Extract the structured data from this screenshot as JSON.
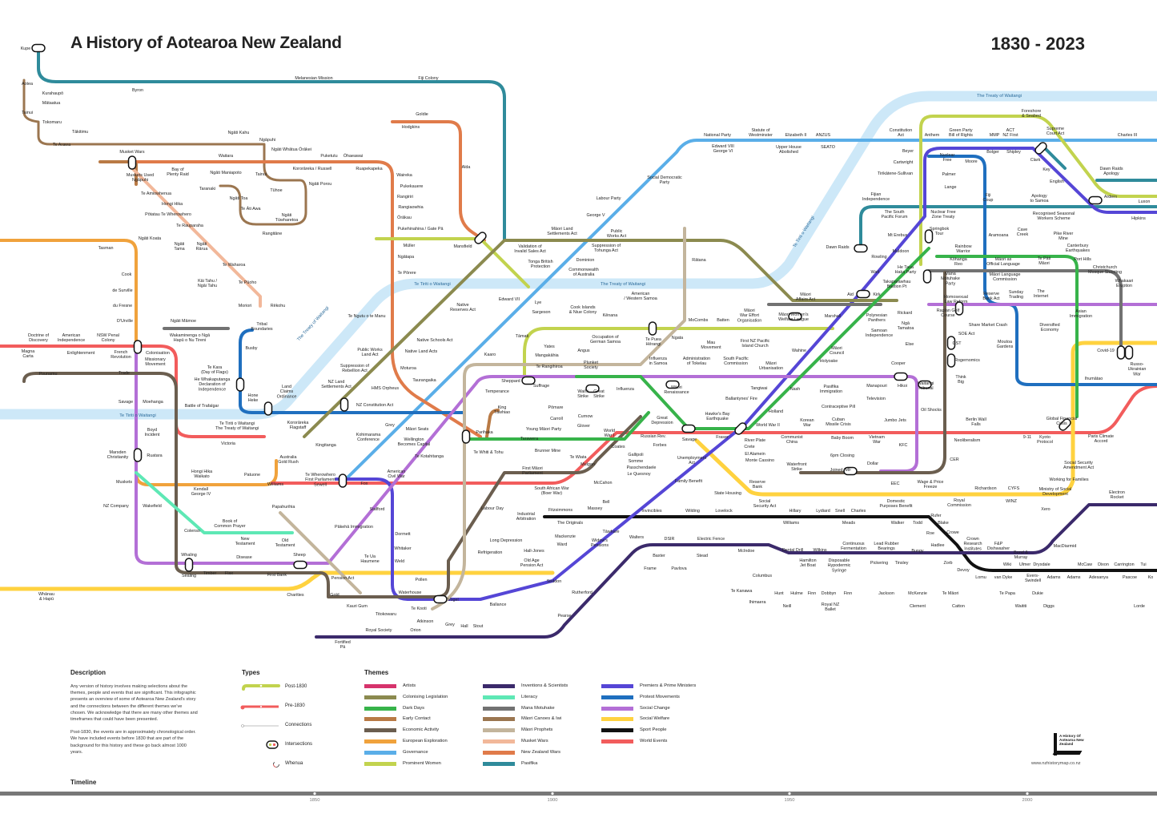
{
  "header": {
    "title": "A History of Aotearoa New Zealand",
    "years": "1830 - 2023"
  },
  "treaty_labels": [
    "Te Tiriti o Waitangi",
    "The Treaty of Waitangi",
    "Te Tiriti o Waitangi",
    "The Treaty of Waitangi",
    "Te Tiriti o Waitangi",
    "The Treaty of Waitangi"
  ],
  "stations": [
    "Kupe",
    "Aotea",
    "Kurahaupō",
    "Mātaatua",
    "Tainui",
    "Tokomaru",
    "Tākitimu",
    "Te Arawa",
    "Melanesian Mission",
    "Fiji Colony",
    "Byron",
    "Goldie",
    "Hodgkins",
    "Alda",
    "Ngāti Kahu",
    "Ngāpuhi",
    "Ngāti Whātua Ōrākei",
    "Waitara",
    "Puketutu",
    "Ōhaeawai",
    "Kororāreka / Russell",
    "Ruapekapeka",
    "Musket Wars",
    "Muskets Used\nNgāpuhi",
    "Bay of\nPlenty Raid",
    "Ngāti Maniapoto",
    "Tainui",
    "Ngāti Porou",
    "Te Amiowhenua",
    "Taranaki",
    "Ngāti Toa",
    "Tūhoe",
    "Hongi Hika",
    "Te Āti Awa",
    "Pōtatau Te Wherowhero",
    "Ngāti\nTūwharetoa",
    "Te Rauparaha",
    "Rangitāne",
    "Ngāti Koata",
    "Ngāti\nTama",
    "Ngāti\nRārua",
    "Tasman",
    "Te Waharoa",
    "Cook",
    "Kāi Tahu /\nNgāi Tahu",
    "Te Pūoho",
    "de Surville",
    "du Fresne",
    "Moriori",
    "Rēkohu",
    "D'Urville",
    "Ngāti Māmoe",
    "Tribal\nBoundaries",
    "Doctrine of\nDiscovery",
    "American\nIndependence",
    "NSW Penal\nColony",
    "Wakaminenga o Ngā\nHapū o Nu Tireni",
    "Busby",
    "Colonisation",
    "Missionary\nMovement",
    "Magna\nCarta",
    "Enlightenment",
    "French\nRevolution",
    "Trade",
    "Te Kara\n(Day of Flags)",
    "He Whakaputanga\nDeclaration of\nIndependence",
    "Pounamu",
    "Savage",
    "Moehanga",
    "Hone\nHeke",
    "Battle of Trafalgar",
    "Land\nClaims\nOrdinance",
    "NZ Land\nSettlements Act",
    "NZ Constitution Act",
    "Boyd\nIncident",
    "Te Tiriti o Waitangi\nThe Treaty of Waitangi",
    "Kororāreka\nFlagstaff",
    "Victoria",
    "Kingitanga",
    "Marsden\nChristianity",
    "Ruatara",
    "Australia\nGold Rush",
    "Te Wherowhero\nFirst Parliament\nSewell",
    "Hongi Hika\nWaikato",
    "Patuone",
    "Williams",
    "Muskets",
    "Kendall\nGeorge IV",
    "Wakefield",
    "NZ Company",
    "Papahurihia",
    "Book of\nCommon Prayer",
    "Colenso",
    "New\nTestament",
    "Old\nTestament",
    "Whaling",
    "Disease",
    "Sheep",
    "Sealing",
    "Timber",
    "Flax",
    "First Bank",
    "Whānau\n& Hapū",
    "Charities",
    "Gold",
    "Kauri Gum",
    "Titokowaru",
    "Royal Society",
    "Orion",
    "Fortified\nPā",
    "Te Ngutu o te Manu",
    "Public Works\nLand Act",
    "Suppression of\nRebellion Act",
    "HMS Orpheus",
    "Grey",
    "Kohimarama\nConference",
    "Wellington\nBecomes Capital",
    "Māori Seats",
    "Native Schools Act",
    "Native Land Acts",
    "Moturoa",
    "Taurangaika",
    "Te Kotahitanga",
    "American\nCivil War",
    "Fox",
    "Stafford",
    "Pākehā Immigration",
    "Dormett",
    "Whitaker",
    "Weld",
    "Te Ua\nHaumene",
    "Pollen",
    "Waterhouse",
    "Vogel",
    "Te Kooti",
    "Atkinson",
    "Grey",
    "Hall",
    "Stout",
    "Pension Act",
    "Waireka",
    "Pukekauere",
    "Rangiriri",
    "Rangiaowhia",
    "Ōrākau",
    "Pukehinahina / Gate Pā",
    "Müller",
    "Ngātapa",
    "Te Pōrere",
    "Mansfield",
    "Native\nReserves Act",
    "Kaaro",
    "Tāmati",
    "Parihaka",
    "Te Whiti & Tohu",
    "King\nTāwhiao",
    "Temperance",
    "Sheppard",
    "Suffrage",
    "Edward VII",
    "Lye",
    "Sargeson",
    "Yates",
    "Mangakāhia",
    "Te Rangihiroa",
    "Angus",
    "Pōmare",
    "Carroll",
    "Young Māori Party",
    "Tarawera",
    "Brunner Mine",
    "Te Wiata",
    "Mulgan",
    "First Māori\nParliament",
    "South African War\n(Boer War)",
    "Labour Day",
    "Industrial\nArbitration",
    "Long Depression",
    "Refrigeration",
    "Hall-Jones",
    "Old Age\nPension Act",
    "Seddon",
    "Ballance",
    "Pearse",
    "Rutherford",
    "Fitzsimmons",
    "The Originals",
    "Mackenzie",
    "Ward",
    "Validation of\nInvalid Sales Act",
    "Māori Land\nSettlements Act",
    "Tonga British\nProtection",
    "Dominion",
    "Commonwealth\nof Australia",
    "Suppression of\nTohunga Act",
    "Public\nWorks Act",
    "George V",
    "Labour Party",
    "Social Democratic\nParty",
    "Cook Islands\n& Niue Colony",
    "Kēnana",
    "American\n/ Western Samoa",
    "Rātana",
    "National Party",
    "Edward VIII\nGeorge VI",
    "Statute of\nWestminster",
    "Elizabeth II",
    "Upper House\nAbolished",
    "ANZUS",
    "SEATO",
    "Occupation of\nGerman Samoa",
    "Plunket\nSociety",
    "Waihi\nStrike",
    "Great\nStrike",
    "Curnow",
    "Glover",
    "World\nWar I",
    "Influenza",
    "Te Puea\nHērangi",
    "Ngata",
    "Influenza\nin Samoa",
    "Administration\nof Tokelau",
    "Māori\nRenaissance",
    "Mau\nMovement",
    "MoCombs",
    "Batten",
    "Māori\nWar Effort\nOrganisation",
    "Māori Women's\nWelfare League",
    "First NZ Pacific\nIsland Church",
    "South Pacific\nCommission",
    "Māori\nUrbanisation",
    "Marshall",
    "Māori\nAffairs Act",
    "Wahine",
    "Māori\nCouncil",
    "Holyoake",
    "Tangiwai",
    "Nash",
    "Pasifika\nImmigration",
    "Ballantynes' Fire",
    "Hawke's Bay\nEarthquake",
    "Holland",
    "Great\nDepression",
    "Russian Rev.",
    "Forbes",
    "Savage",
    "Fraser",
    "World War II",
    "Coates",
    "Gallipoli",
    "Somme",
    "Passchendaele",
    "Le Quesnoy",
    "River Plate",
    "Crete",
    "El Alamein",
    "Monte Cassino",
    "Unemployment\nAct",
    "Family Benefit",
    "McCahon",
    "Invincibles",
    "Wilding",
    "Lovelock",
    "Walters",
    "Massey",
    "Bell",
    "Tāwhare",
    "Widow's\nPensions",
    "Communist\nChina",
    "Korean\nWar",
    "Cuban\nMissile Crisis",
    "Baby Boom",
    "Vietnam\nWar",
    "Contraceptive Pill",
    "Television",
    "Manapouri",
    "Hikoi",
    "Jumbo Jets",
    "KFC",
    "6pm Closing",
    "Waterfront\nStrike",
    "Joined IMF",
    "Dollar",
    "EEC",
    "State Housing",
    "Reserve\nBank",
    "Social\nSecurity Act",
    "Hillary",
    "Williams",
    "Lydiard",
    "Snell",
    "Charles",
    "Meads",
    "Domestic\nPurposes Benefit",
    "Walker",
    "Todd",
    "DSIR",
    "Electric Fence",
    "Baxter",
    "Stead",
    "Frame",
    "Pavlova",
    "McIndoe",
    "Dental Drill",
    "Wilkins",
    "Continuous\nFermentation",
    "Lead Rubber\nBearings",
    "Hamilton\nJet Boat",
    "Disposable\nHypodermic\nSyringe",
    "Pickering",
    "Tinsley",
    "Bungy",
    "Columbus",
    "Te Kanawa",
    "Ihimaera",
    "Hunt",
    "Hulme",
    "Finn",
    "Dobbyn",
    "Finn",
    "Neill",
    "Royal NZ\nBallet",
    "Jackson",
    "McKenzie",
    "Clement",
    "Te Māori",
    "Catton",
    "Te Papa",
    "Dukie",
    "Waititi",
    "Diggs",
    "Lorde",
    "Constitution\nAct",
    "Anthem",
    "Green Party\nBill of Rights",
    "MMP",
    "ACT\nNZ First",
    "Foreshore\n& Seabed",
    "Supreme\nCourt Act",
    "Charles III",
    "Beyer",
    "Cartwright",
    "Tirikātene-Sullivan",
    "Nuclear\nFree",
    "Moore",
    "Bolger",
    "Shipley",
    "Clark",
    "Palmer",
    "Key",
    "English",
    "Dawn Raids\nApology",
    "Lange",
    "Fiji\nCoup",
    "Apology\nto Samoa",
    "Ardern",
    "Luxon",
    "Fijian\nIndependence",
    "The South\nPacific Forum",
    "Nuclear Free\nZone Treaty",
    "Recognised Seasonal\nWorkers Scheme",
    "Hipkins",
    "Mt Erebus",
    "Springbok\nTour",
    "Aramoana",
    "Cave\nCreek",
    "Pike River\nMine",
    "Dawn Raids",
    "Muldoon",
    "Rainbow\nWarrior",
    "Canterbury\nEarthquakes",
    "Rowling",
    "Kōhanga\nReo",
    "Māori as\nOfficial Language",
    "Te Pāti\nMāori",
    "Port Hills",
    "Watt",
    "He Taua\nHaka Party",
    "Mana\nMotuhake\nParty",
    "Māori Language\nCommission",
    "Christchurch\nMosque Shooting",
    "Takaparawhau\nBastion Pt",
    "Whakaari\nEruption",
    "Aid",
    "Kirk",
    "Homosexual\nLaw Reform",
    "Reserve\nBank Act",
    "Sunday\nTrading",
    "The\nInternet",
    "Polynesian\nPanthers",
    "Rickard",
    "Raglan Golf\nCourse",
    "Asian\nImmigration",
    "Share Market Crash",
    "Diversified\nEconomy",
    "Ngā\nTamatoa",
    "Samoan\nIndependence",
    "SOE Act",
    "Else",
    "GST",
    "Moutoa\nGardens",
    "Covid-19",
    "Russo-\nUkrainian\nWar",
    "Rogernomics",
    "Cooper",
    "Ihumātao",
    "Waitangi\nTribunal",
    "Think\nBig",
    "Oil Shocks",
    "Berlin Wall\nFalls",
    "Global Financial\nCrisis",
    "9-11",
    "Kyoto\nProtocol",
    "Paris Climate\nAccord",
    "Neoliberalism",
    "CER",
    "Wage & Price\nFreeze",
    "Richardson",
    "CYFS",
    "Royal\nCommission",
    "WINZ",
    "Social Security\nAmendment Act",
    "Working for Families",
    "Ministry of Social\nDevelopment",
    "Electron\nRocket",
    "Xero",
    "Rufer",
    "Blake",
    "Roe",
    "Crowe",
    "Hadlee",
    "Crown\nResearch\nInstitutes",
    "F&P\nDishwasher",
    "MacDiarmid",
    "Zorb",
    "Devoy",
    "Bond &\nMurray",
    "Wiki",
    "Ulmer",
    "Drysdale",
    "McCaw",
    "Dixon",
    "Carrington",
    "Tui",
    "Lomu",
    "van Dyke",
    "Evers-\nSwindell",
    "Adams",
    "Adams",
    "Adesanya",
    "Pascoe",
    "Ko"
  ],
  "legend": {
    "description_heading": "Description",
    "description": [
      "Any version of history involves making selections about the themes, people and events that are significant. This infographic presents an overview of some of Aotearoa New Zealand's story and the connections between the different themes we've chosen. We acknowledge that there are many other themes and timeframes that could have been presented.",
      "Post-1830, the events are in approximately chronological order. We have included events before 1830 that are part of the background for this history and these go back almost 1000 years."
    ],
    "types_heading": "Types",
    "types": [
      "Post-1830",
      "Pre-1830",
      "Connections",
      "Intersections",
      "Whenua"
    ],
    "themes_heading": "Themes",
    "themes": [
      {
        "name": "Artists",
        "color": "#d6336c"
      },
      {
        "name": "Colonising Legislation",
        "color": "#8b8a4f"
      },
      {
        "name": "Dark Days",
        "color": "#37b34a"
      },
      {
        "name": "Early Contact",
        "color": "#b97a45"
      },
      {
        "name": "Economic Activity",
        "color": "#6b5e4f"
      },
      {
        "name": "European Exploration",
        "color": "#f0a23c"
      },
      {
        "name": "Governance",
        "color": "#5aaee8"
      },
      {
        "name": "Prominent Women",
        "color": "#c2d34e"
      },
      {
        "name": "Inventions & Scientists",
        "color": "#3b2a6b"
      },
      {
        "name": "Literacy",
        "color": "#5ee8b5"
      },
      {
        "name": "Mana Motuhake",
        "color": "#727272"
      },
      {
        "name": "Māori Canoes & Iwi",
        "color": "#9b7650"
      },
      {
        "name": "Māori Prophets",
        "color": "#c3b59c"
      },
      {
        "name": "Musket Wars",
        "color": "#f2b89a"
      },
      {
        "name": "New Zealand Wars",
        "color": "#e07b4a"
      },
      {
        "name": "Pasifika",
        "color": "#2f8b9b"
      },
      {
        "name": "Premiers & Prime Ministers",
        "color": "#5546d6"
      },
      {
        "name": "Protest Movements",
        "color": "#1f6fbf"
      },
      {
        "name": "Social Change",
        "color": "#b36fd6"
      },
      {
        "name": "Social Welfare",
        "color": "#ffd23f"
      },
      {
        "name": "Sport People",
        "color": "#111111"
      },
      {
        "name": "World Events",
        "color": "#f25c5c"
      }
    ],
    "logo_text": "A History Of Aotearoa New Zealand",
    "url": "www.nzhistorymap.co.nz"
  },
  "timeline": {
    "heading": "Timeline",
    "ticks": [
      "1850",
      "1900",
      "1950",
      "2000"
    ]
  }
}
